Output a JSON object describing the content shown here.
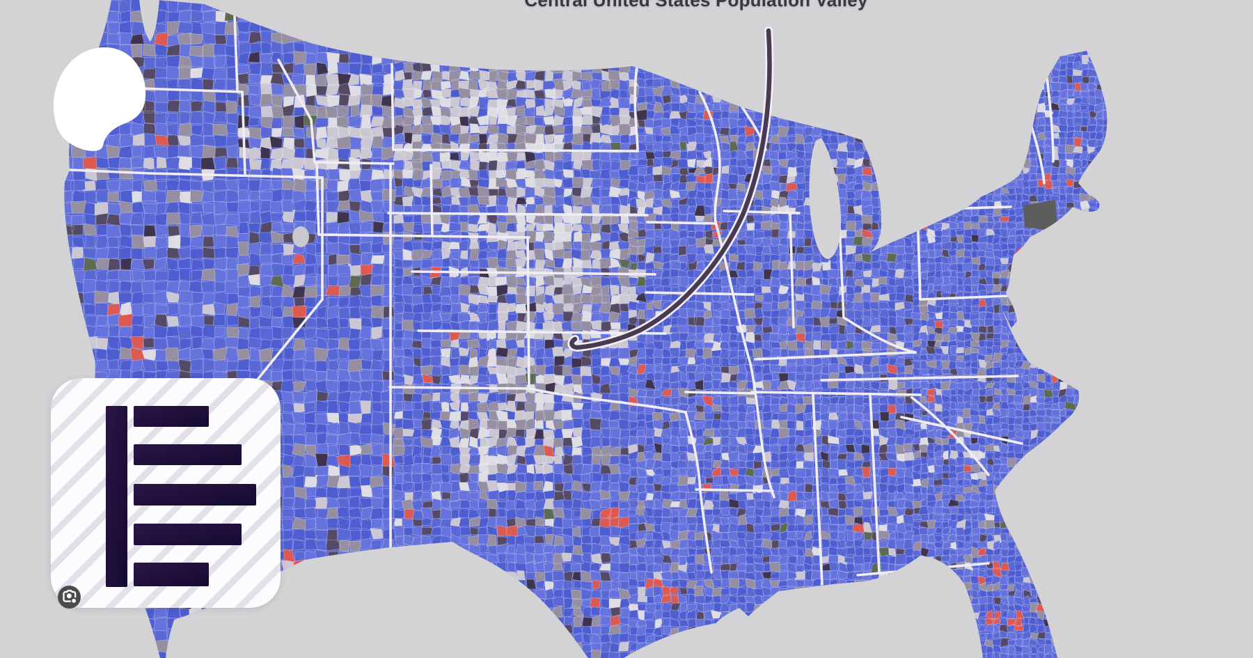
{
  "page": {
    "background": "#d3d2d5"
  },
  "map": {
    "title": "Central United States Population Valley",
    "type": "county-choropleth",
    "region": "contiguous United States",
    "annotation": {
      "shape": "curved-pointer-line",
      "color": "#473a52",
      "halo_color": "#f1eff5",
      "meaning": "curved line pointing to the low-population valley in the central plains"
    },
    "palette": {
      "county_blue": "#5a68d6",
      "county_blue_dark": "#4e5dcf",
      "county_blue_light": "#6673dc",
      "valley_light": "#cbc8d4",
      "valley_lighter": "#dfdde4",
      "mid_gray_purple": "#968fa2",
      "dark_purple": "#554a66",
      "darkest_purple": "#3f3450",
      "metro_red": "#dd5a52",
      "olive_green": "#5c6b52",
      "state_border": "#efedf3",
      "county_border": "rgba(255,255,255,0.35)",
      "connecticut_gray": "#5d5d5d",
      "water_background": "#d3d2d5"
    }
  },
  "overlays": {
    "highlight_blob": {
      "color": "#ffffff"
    },
    "result_card": {
      "background": "#fcfbfd",
      "stripe_color": "#e8e6ed",
      "logo": {
        "type": "horizontal-bar-chart-logo",
        "color_dark": "#150a30",
        "color_light": "#2a1646",
        "bar_count": 5
      },
      "lens_button": {
        "icon": "camera-search-icon",
        "circle_color": "#4b4b4b",
        "glyph_color": "#ffffff"
      }
    }
  }
}
